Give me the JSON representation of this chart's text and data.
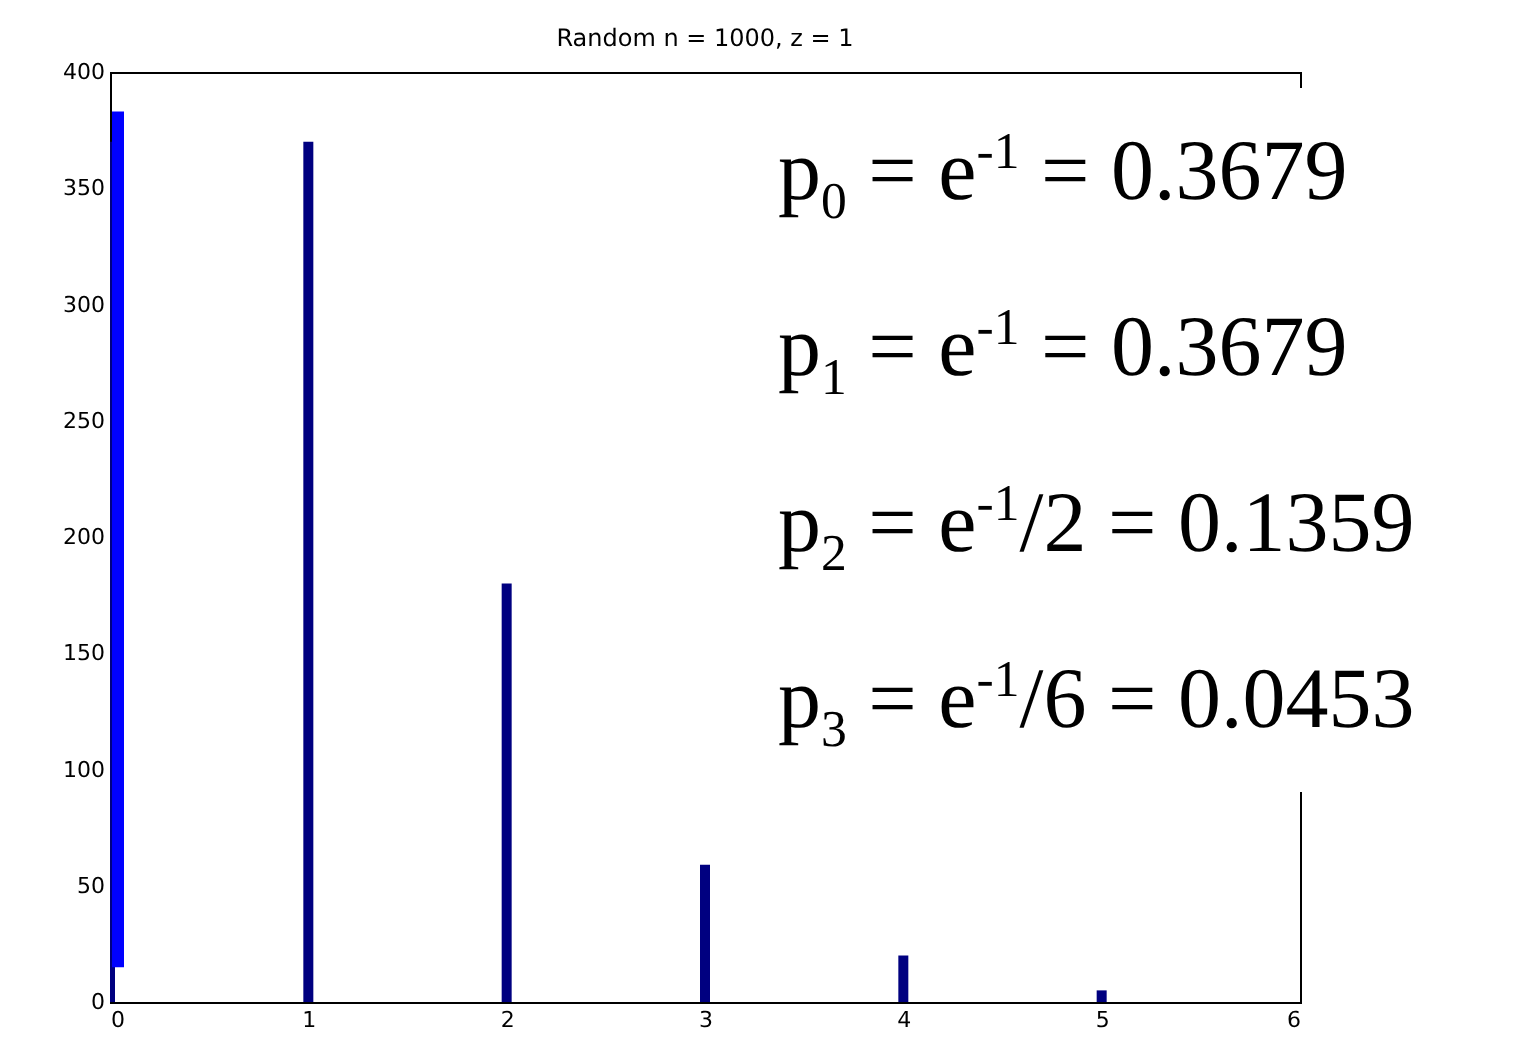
{
  "chart_data": {
    "type": "bar",
    "title": "Random n = 1000, z = 1",
    "x": [
      0,
      1,
      2,
      3,
      4,
      5
    ],
    "series": [
      {
        "color": "#000080",
        "values": [
          370,
          370,
          180,
          59,
          20,
          5
        ]
      },
      {
        "color": "#0000ff",
        "x": [
          0
        ],
        "values": [
          368
        ],
        "base": [
          15
        ]
      }
    ],
    "xlim": [
      0,
      6
    ],
    "xticks": [
      0,
      1,
      2,
      3,
      4,
      5,
      6
    ],
    "ylim": [
      0,
      400
    ],
    "yticks": [
      0,
      50,
      100,
      150,
      200,
      250,
      300,
      350,
      400
    ],
    "annotations": [
      "p$_{0}$ = e$^{-1}$ = 0.3679",
      "p$_{1}$ = e$^{-1}$ = 0.3679",
      "p$_{2}$ = e$^{-1}$/2 = 0.1359",
      "p$_{3}$ = e$^{-1}$/6 = 0.0453"
    ]
  }
}
